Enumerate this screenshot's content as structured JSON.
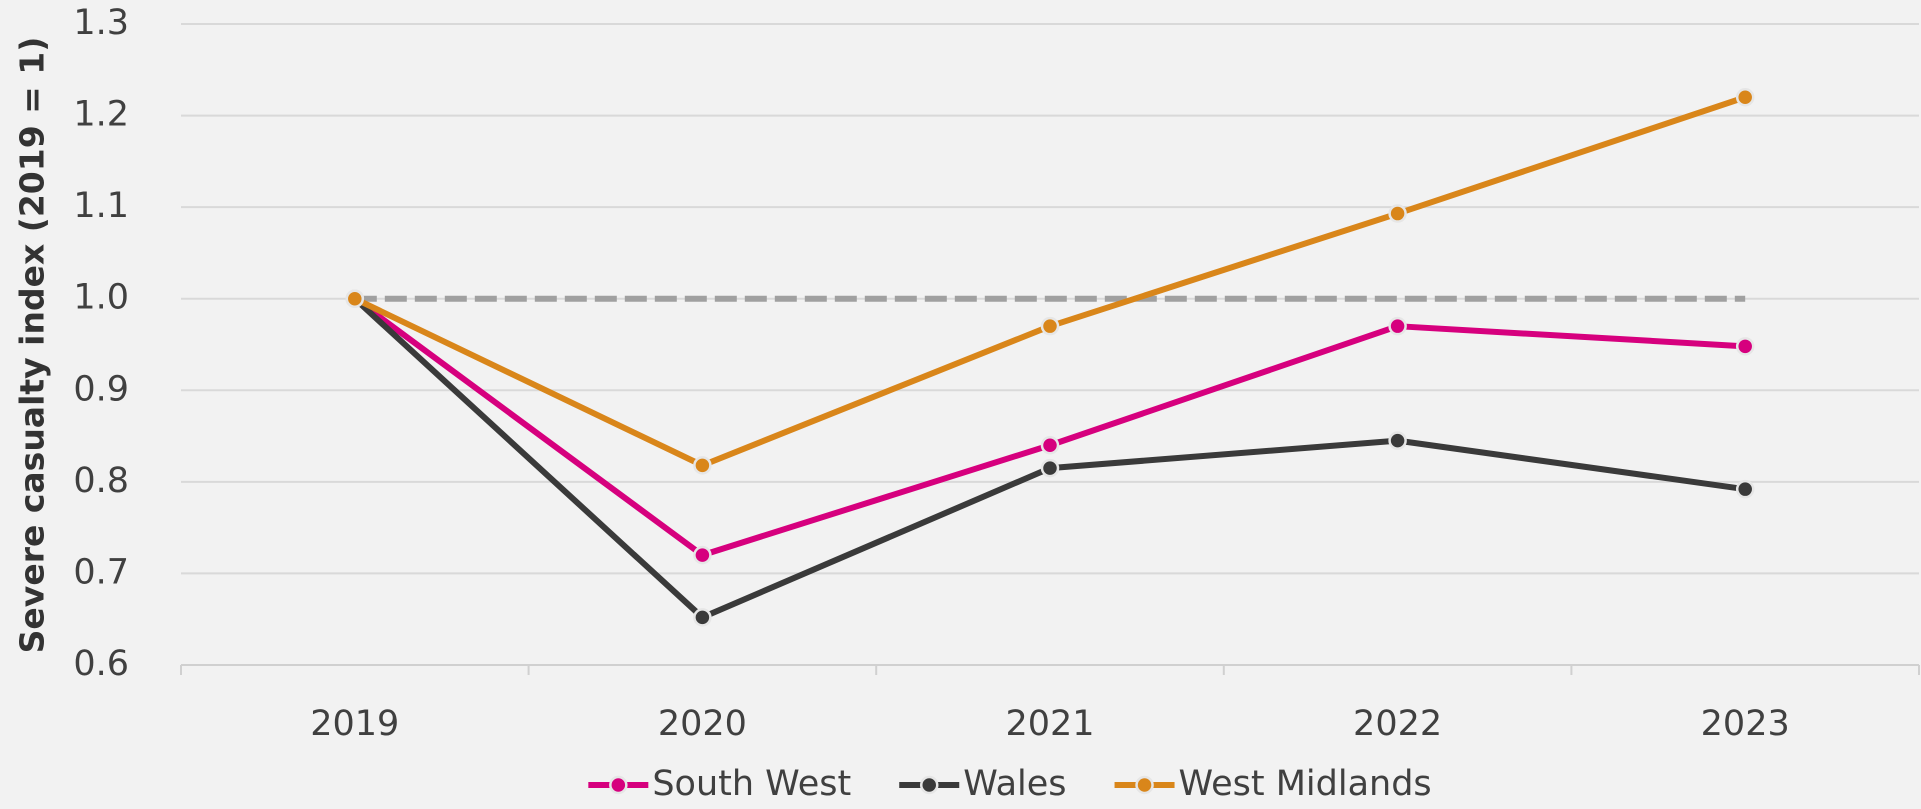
{
  "chart_data": {
    "type": "line",
    "y_label": "Severe casualty index (2019 = 1)",
    "categories": [
      "2019",
      "2020",
      "2021",
      "2022",
      "2023"
    ],
    "series": [
      {
        "name": "South West",
        "color": "#d6007e",
        "values": [
          1.0,
          0.72,
          0.84,
          0.97,
          0.948
        ]
      },
      {
        "name": "Wales",
        "color": "#3a3a3a",
        "values": [
          1.0,
          0.652,
          0.815,
          0.845,
          0.792
        ]
      },
      {
        "name": "West Midlands",
        "color": "#d9861a",
        "values": [
          1.0,
          0.818,
          0.97,
          1.093,
          1.22
        ]
      }
    ],
    "reference_line": {
      "value": 1,
      "color": "#a0a0a0"
    },
    "ylim": [
      0.6,
      1.3
    ],
    "yticks": [
      0.6,
      0.7,
      0.8,
      0.9,
      {
        "value": 1,
        "label": "1.0"
      },
      1.1,
      1.2,
      1.3
    ],
    "grid": true,
    "legend": "bottom"
  }
}
